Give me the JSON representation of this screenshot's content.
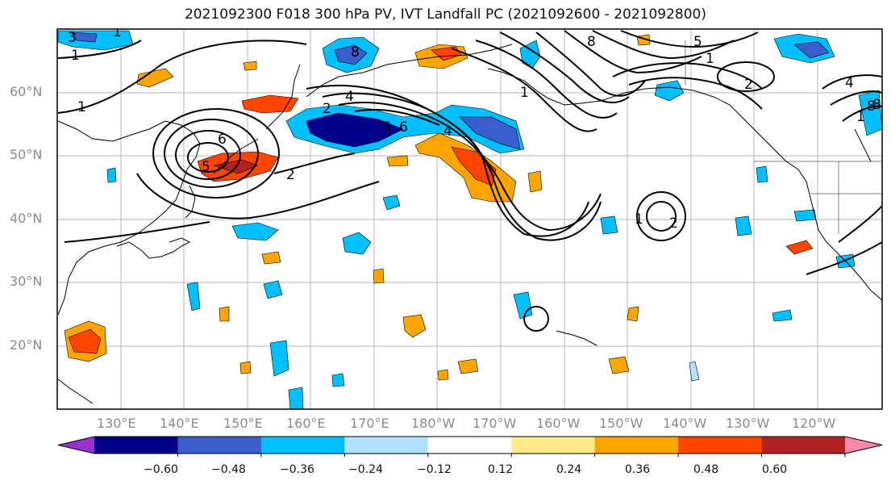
{
  "title": "2021092300 F018 300 hPa PV, IVT Landfall PC (2021092600 - 2021092800)",
  "lat_labels": [
    "60°N",
    "50°N",
    "40°N",
    "30°N",
    "20°N"
  ],
  "lon_labels": [
    "130°E",
    "140°E",
    "150°E",
    "160°E",
    "170°E",
    "180°W",
    "170°W",
    "160°W",
    "150°W",
    "140°W",
    "130°W",
    "120°W"
  ],
  "contour_labels": [
    "3",
    "1",
    "1",
    "2",
    "6",
    "5",
    "8",
    "4",
    "2",
    "5",
    "6",
    "4",
    "8",
    "5",
    "1",
    "8",
    "1",
    "2",
    "1",
    "1",
    "2",
    "4",
    "8",
    "1"
  ],
  "colorbar": {
    "ticks": [
      "−0.60",
      "−0.48",
      "−0.36",
      "−0.24",
      "−0.12",
      "0.12",
      "0.24",
      "0.36",
      "0.48",
      "0.60"
    ],
    "colors": [
      "#9932cc",
      "#00008b",
      "#3a5fcd",
      "#00bfff",
      "#b0e2ff",
      "#ffffff",
      "#ffeb8a",
      "#ffa500",
      "#ff4500",
      "#b22222",
      "#ff88aa"
    ]
  },
  "palette": {
    "neg_dark": "#00008b",
    "neg_mid": "#3a5fcd",
    "neg_light": "#00bfff",
    "neg_pale": "#b0e2ff",
    "pos_pale": "#ffeb8a",
    "pos_mid": "#ffa500",
    "pos_strong": "#ff4500",
    "pos_dark": "#b22222"
  }
}
